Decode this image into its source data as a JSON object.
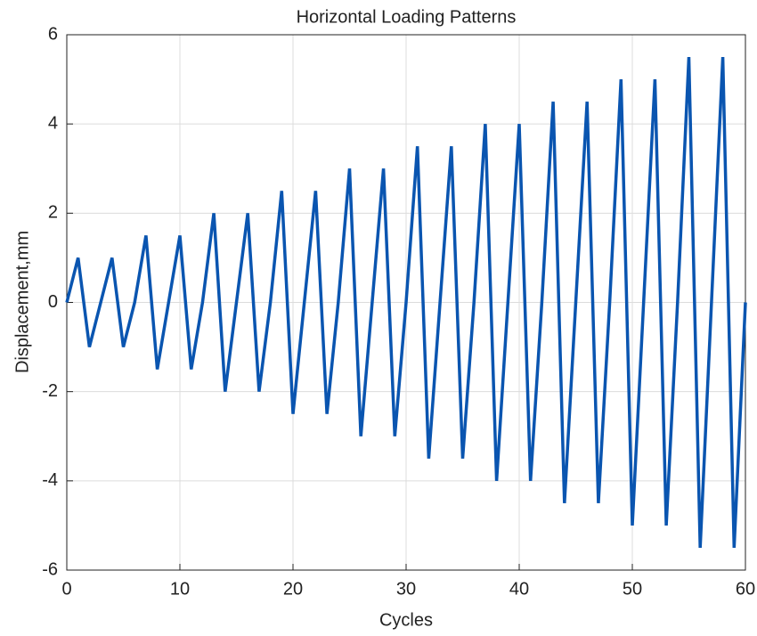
{
  "chart_data": {
    "type": "line",
    "title": "Horizontal Loading Patterns",
    "xlabel": "Cycles",
    "ylabel": "Displacement,mm",
    "x": [
      0,
      1,
      2,
      3,
      4,
      5,
      6,
      7,
      8,
      9,
      10,
      11,
      12,
      13,
      14,
      15,
      16,
      17,
      18,
      19,
      20,
      21,
      22,
      23,
      24,
      25,
      26,
      27,
      28,
      29,
      30,
      31,
      32,
      33,
      34,
      35,
      36,
      37,
      38,
      39,
      40,
      41,
      42,
      43,
      44,
      45,
      46,
      47,
      48,
      49,
      50,
      51,
      52,
      53,
      54,
      55,
      56,
      57,
      58,
      59,
      60
    ],
    "values": [
      0,
      1,
      -1,
      0,
      1,
      -1,
      0,
      1.5,
      -1.5,
      0,
      1.5,
      -1.5,
      0,
      2,
      -2,
      0,
      2,
      -2,
      0,
      2.5,
      -2.5,
      0,
      2.5,
      -2.5,
      0,
      3,
      -3,
      0,
      3,
      -3,
      0,
      3.5,
      -3.5,
      0,
      3.5,
      -3.5,
      0,
      4,
      -4,
      0,
      4,
      -4,
      0,
      4.5,
      -4.5,
      0,
      4.5,
      -4.5,
      0,
      5,
      -5,
      0,
      5,
      -5,
      0,
      5.5,
      -5.5,
      0,
      5.5,
      -5.5,
      0
    ],
    "color": "#0a55b0",
    "xlim": [
      0,
      60
    ],
    "xticks": [
      0,
      10,
      20,
      30,
      40,
      50,
      60
    ],
    "ylim": [
      -6,
      6
    ],
    "yticks": [
      -6,
      -4,
      -2,
      0,
      2,
      4,
      6
    ],
    "grid": true
  }
}
